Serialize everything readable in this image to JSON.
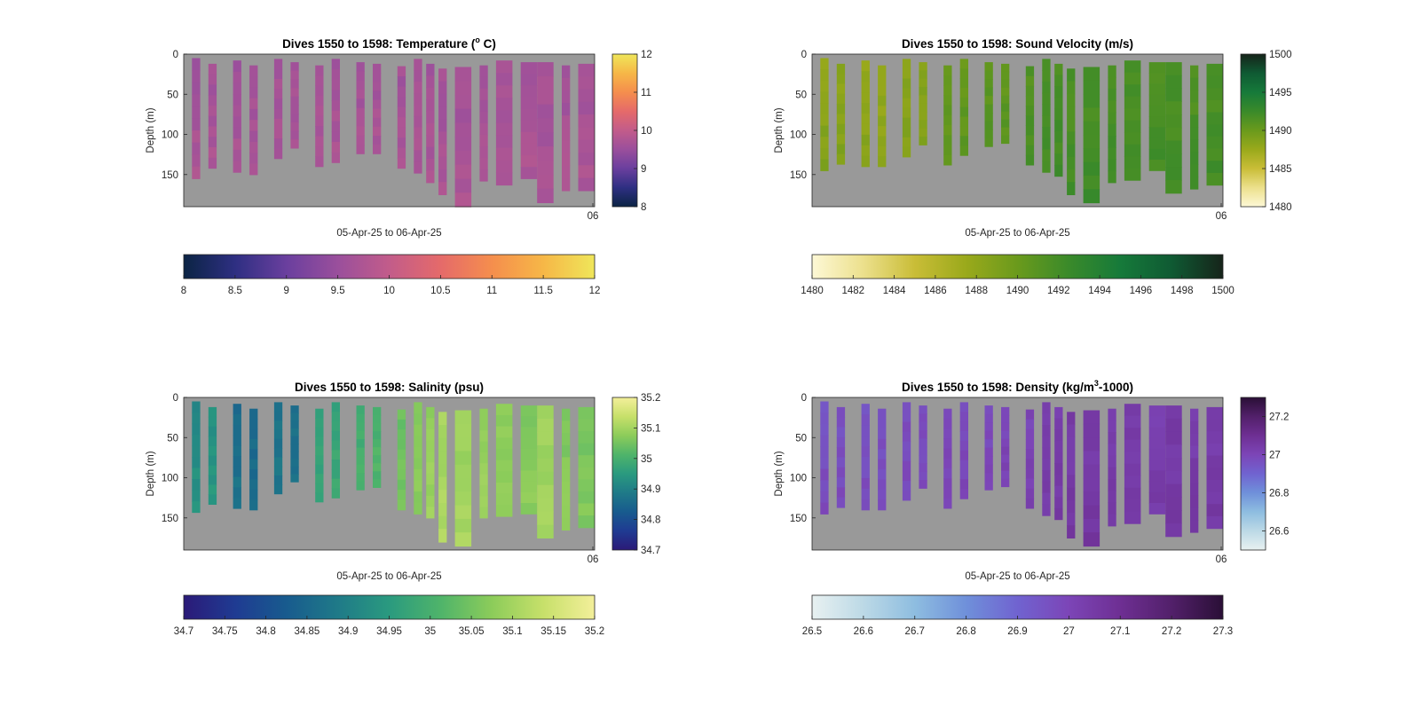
{
  "chart_data": [
    {
      "type": "heatmap",
      "key": "temp",
      "title": "Dives 1550 to 1598: Temperature (",
      "title_sup": "o",
      "title_tail": " C)",
      "xlabel": "05-Apr-25 to 06-Apr-25",
      "ylabel": "Depth (m)",
      "xtick_label": "06",
      "yticks": [
        0,
        50,
        100,
        150
      ],
      "ylim": [
        0,
        190
      ],
      "value_range": [
        8,
        12
      ],
      "vertical_colorbar_ticks": [
        "8",
        "9",
        "10",
        "11",
        "12"
      ],
      "horizontal_colorbar_ticks": [
        "8",
        "8.5",
        "9",
        "9.5",
        "10",
        "10.5",
        "11",
        "11.5",
        "12"
      ],
      "colormap": [
        "#0b2444",
        "#2e2f82",
        "#6a3f9e",
        "#9a4f9c",
        "#c25c8a",
        "#e56a6a",
        "#f58e4d",
        "#f6b747",
        "#efe65a"
      ],
      "profile_depths_m": [
        155,
        142,
        147,
        150,
        130,
        117,
        140,
        135,
        124,
        124,
        142,
        148,
        160,
        175,
        190,
        158,
        163,
        155,
        185,
        170,
        170
      ],
      "profile_values": [
        9.6,
        9.6,
        9.6,
        9.6,
        9.6,
        9.6,
        9.6,
        9.6,
        9.6,
        9.6,
        9.6,
        9.6,
        9.6,
        9.6,
        9.6,
        9.6,
        9.6,
        9.6,
        9.6,
        9.6,
        9.6
      ]
    },
    {
      "type": "heatmap",
      "key": "sv",
      "title": "Dives 1550 to 1598: Sound Velocity (m/s)",
      "title_sup": "",
      "title_tail": "",
      "xlabel": "05-Apr-25 to 06-Apr-25",
      "ylabel": "Depth (m)",
      "xtick_label": "06",
      "yticks": [
        0,
        50,
        100,
        150
      ],
      "ylim": [
        0,
        190
      ],
      "value_range": [
        1480,
        1500
      ],
      "vertical_colorbar_ticks": [
        "1480",
        "1485",
        "1490",
        "1495",
        "1500"
      ],
      "horizontal_colorbar_ticks": [
        "1480",
        "1482",
        "1484",
        "1486",
        "1488",
        "1490",
        "1492",
        "1494",
        "1496",
        "1498",
        "1500"
      ],
      "colormap": [
        "#fdf8d6",
        "#ece08c",
        "#c9bd37",
        "#9aa91b",
        "#6a9a1c",
        "#3a8a2a",
        "#167a3a",
        "#0f5a33",
        "#16241a"
      ],
      "profile_depths_m": [
        145,
        137,
        140,
        140,
        128,
        113,
        138,
        126,
        115,
        111,
        138,
        147,
        152,
        175,
        185,
        160,
        157,
        145,
        173,
        168,
        163
      ],
      "profile_values": [
        1488.2,
        1488.2,
        1488.0,
        1487.8,
        1488.3,
        1488.4,
        1490.0,
        1490.2,
        1490.6,
        1490.4,
        1491.2,
        1491.4,
        1491.6,
        1491.5,
        1491.7,
        1491.6,
        1491.5,
        1491.4,
        1491.6,
        1491.4,
        1491.5
      ]
    },
    {
      "type": "heatmap",
      "key": "sal",
      "title": "Dives 1550 to 1598: Salinity (psu)",
      "title_sup": "",
      "title_tail": "",
      "xlabel": "05-Apr-25 to 06-Apr-25",
      "ylabel": "Depth (m)",
      "xtick_label": "06",
      "yticks": [
        0,
        50,
        100,
        150
      ],
      "ylim": [
        0,
        190
      ],
      "value_range": [
        34.7,
        35.2
      ],
      "vertical_colorbar_ticks": [
        "34.7",
        "34.8",
        "34.9",
        "35",
        "35.1",
        "35.2"
      ],
      "horizontal_colorbar_ticks": [
        "34.7",
        "34.75",
        "34.8",
        "34.85",
        "34.9",
        "34.95",
        "35",
        "35.05",
        "35.1",
        "35.15",
        "35.2"
      ],
      "colormap": [
        "#2b1a78",
        "#1f3b92",
        "#185b8e",
        "#1f7a88",
        "#2a9a7f",
        "#4fb46a",
        "#8ccc5a",
        "#c7e06a",
        "#f3ef9a"
      ],
      "profile_depths_m": [
        143,
        133,
        138,
        140,
        120,
        105,
        130,
        125,
        115,
        112,
        140,
        145,
        150,
        180,
        185,
        150,
        148,
        145,
        175,
        165,
        162
      ],
      "profile_values": [
        34.92,
        34.93,
        34.86,
        34.85,
        34.87,
        34.86,
        34.96,
        34.97,
        34.99,
        35.0,
        35.04,
        35.06,
        35.08,
        35.1,
        35.09,
        35.08,
        35.07,
        35.06,
        35.09,
        35.06,
        35.05
      ]
    },
    {
      "type": "heatmap",
      "key": "dens",
      "title": "Dives 1550 to 1598: Density (kg/m",
      "title_sup": "3",
      "title_tail": "-1000)",
      "xlabel": "05-Apr-25 to 06-Apr-25",
      "ylabel": "Depth (m)",
      "xtick_label": "06",
      "yticks": [
        0,
        50,
        100,
        150
      ],
      "ylim": [
        0,
        190
      ],
      "value_range": [
        26.5,
        27.3
      ],
      "vertical_colorbar_ticks": [
        "26.6",
        "26.8",
        "27",
        "27.2"
      ],
      "horizontal_colorbar_ticks": [
        "26.5",
        "26.6",
        "26.7",
        "26.8",
        "26.9",
        "27",
        "27.1",
        "27.2",
        "27.3"
      ],
      "colormap": [
        "#e8f1f1",
        "#bcd9e6",
        "#8ebde0",
        "#6f90da",
        "#7063d0",
        "#7c45b7",
        "#6e2f93",
        "#52206a",
        "#2a0f36"
      ],
      "profile_depths_m": [
        145,
        137,
        140,
        140,
        128,
        113,
        138,
        126,
        115,
        111,
        138,
        147,
        152,
        175,
        185,
        160,
        157,
        145,
        173,
        168,
        163
      ],
      "profile_values": [
        26.96,
        26.96,
        26.96,
        26.96,
        26.97,
        26.97,
        26.98,
        26.98,
        26.98,
        26.99,
        27.0,
        27.02,
        27.03,
        27.04,
        27.04,
        27.03,
        27.03,
        27.02,
        27.04,
        27.03,
        27.03
      ]
    }
  ]
}
